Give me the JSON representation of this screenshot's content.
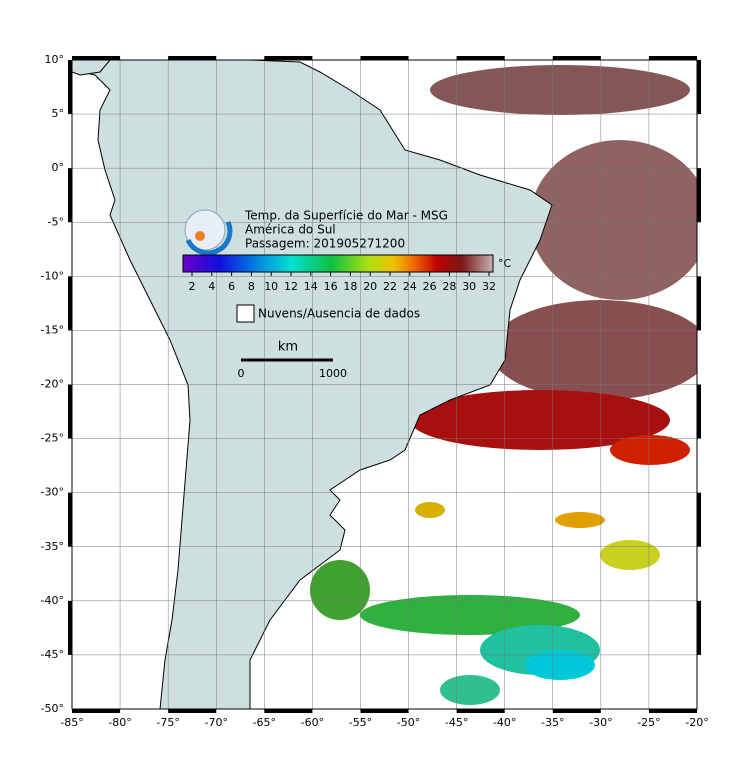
{
  "map": {
    "title": "Temp. da Superfície do Mar - MSG",
    "region": "América do Sul",
    "pass": "Passagem: 201905271200",
    "lonlim": [
      -85,
      -20
    ],
    "latlim": [
      -50,
      10
    ],
    "lonticks": [
      {
        "value": -85,
        "label": "-85°"
      },
      {
        "value": -80,
        "label": "-80°"
      },
      {
        "value": -75,
        "label": "-75°"
      },
      {
        "value": -70,
        "label": "-70°"
      },
      {
        "value": -65,
        "label": "-65°"
      },
      {
        "value": -60,
        "label": "-60°"
      },
      {
        "value": -55,
        "label": "-55°"
      },
      {
        "value": -50,
        "label": "-50°"
      },
      {
        "value": -45,
        "label": "-45°"
      },
      {
        "value": -40,
        "label": "-40°"
      },
      {
        "value": -35,
        "label": "-35°"
      },
      {
        "value": -30,
        "label": "-30°"
      },
      {
        "value": -25,
        "label": "-25°"
      },
      {
        "value": -20,
        "label": "-20°"
      }
    ],
    "latticks": [
      {
        "value": 10,
        "label": "10°"
      },
      {
        "value": 5,
        "label": "5°"
      },
      {
        "value": 0,
        "label": "0°"
      },
      {
        "value": -5,
        "label": "-5°"
      },
      {
        "value": -10,
        "label": "-10°"
      },
      {
        "value": -15,
        "label": "-15°"
      },
      {
        "value": -20,
        "label": "-20°"
      },
      {
        "value": -25,
        "label": "-25°"
      },
      {
        "value": -30,
        "label": "-30°"
      },
      {
        "value": -35,
        "label": "-35°"
      },
      {
        "value": -40,
        "label": "-40°"
      },
      {
        "value": -45,
        "label": "-45°"
      },
      {
        "value": -50,
        "label": "-50°"
      }
    ],
    "colorbar": {
      "unit": "°C",
      "ticks": [
        2,
        4,
        6,
        8,
        10,
        12,
        14,
        16,
        18,
        20,
        22,
        24,
        26,
        28,
        30,
        32
      ]
    },
    "legend": "Nuvens/Ausencia de dados",
    "scale": {
      "unit": "km",
      "start": "0",
      "end": "1000"
    }
  }
}
